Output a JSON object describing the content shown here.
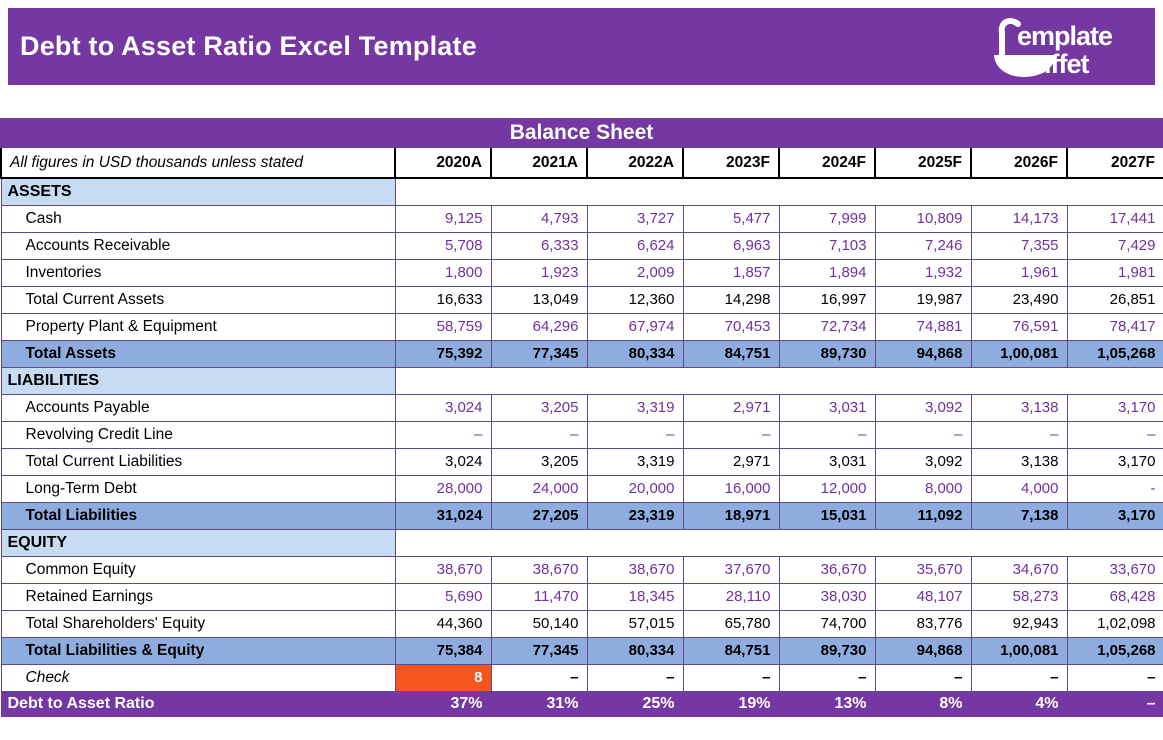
{
  "header": {
    "title": "Debt to Asset Ratio Excel Template",
    "logo": {
      "line1": "emplate",
      "line2": "uffet"
    }
  },
  "table": {
    "title": "Balance Sheet",
    "note": "All figures in USD thousands unless stated",
    "columns": [
      "2020A",
      "2021A",
      "2022A",
      "2023F",
      "2024F",
      "2025F",
      "2026F",
      "2027F"
    ],
    "rows": [
      {
        "label": "ASSETS",
        "type": "section",
        "values": []
      },
      {
        "label": "Cash",
        "type": "input",
        "values": [
          "9,125",
          "4,793",
          "3,727",
          "5,477",
          "7,999",
          "10,809",
          "14,173",
          "17,441"
        ]
      },
      {
        "label": "Accounts Receivable",
        "type": "input",
        "values": [
          "5,708",
          "6,333",
          "6,624",
          "6,963",
          "7,103",
          "7,246",
          "7,355",
          "7,429"
        ]
      },
      {
        "label": "Inventories",
        "type": "input",
        "values": [
          "1,800",
          "1,923",
          "2,009",
          "1,857",
          "1,894",
          "1,932",
          "1,961",
          "1,981"
        ]
      },
      {
        "label": "Total Current Assets",
        "type": "calc",
        "values": [
          "16,633",
          "13,049",
          "12,360",
          "14,298",
          "16,997",
          "19,987",
          "23,490",
          "26,851"
        ]
      },
      {
        "label": "Property Plant & Equipment",
        "type": "input",
        "values": [
          "58,759",
          "64,296",
          "67,974",
          "70,453",
          "72,734",
          "74,881",
          "76,591",
          "78,417"
        ]
      },
      {
        "label": "Total Assets",
        "type": "total",
        "values": [
          "75,392",
          "77,345",
          "80,334",
          "84,751",
          "89,730",
          "94,868",
          "1,00,081",
          "1,05,268"
        ]
      },
      {
        "label": "LIABILITIES",
        "type": "section",
        "values": []
      },
      {
        "label": "Accounts Payable",
        "type": "input",
        "values": [
          "3,024",
          "3,205",
          "3,319",
          "2,971",
          "3,031",
          "3,092",
          "3,138",
          "3,170"
        ]
      },
      {
        "label": "Revolving Credit Line",
        "type": "input",
        "values": [
          "–",
          "–",
          "–",
          "–",
          "–",
          "–",
          "–",
          "–"
        ]
      },
      {
        "label": "Total Current Liabilities",
        "type": "calc",
        "values": [
          "3,024",
          "3,205",
          "3,319",
          "2,971",
          "3,031",
          "3,092",
          "3,138",
          "3,170"
        ]
      },
      {
        "label": "Long-Term Debt",
        "type": "input",
        "values": [
          "28,000",
          "24,000",
          "20,000",
          "16,000",
          "12,000",
          "8,000",
          "4,000",
          "-"
        ]
      },
      {
        "label": "Total Liabilities",
        "type": "total",
        "values": [
          "31,024",
          "27,205",
          "23,319",
          "18,971",
          "15,031",
          "11,092",
          "7,138",
          "3,170"
        ]
      },
      {
        "label": "EQUITY",
        "type": "section",
        "values": []
      },
      {
        "label": "Common Equity",
        "type": "input",
        "values": [
          "38,670",
          "38,670",
          "38,670",
          "37,670",
          "36,670",
          "35,670",
          "34,670",
          "33,670"
        ]
      },
      {
        "label": "Retained Earnings",
        "type": "input",
        "values": [
          "5,690",
          "11,470",
          "18,345",
          "28,110",
          "38,030",
          "48,107",
          "58,273",
          "68,428"
        ]
      },
      {
        "label": "Total Shareholders' Equity",
        "type": "calc",
        "values": [
          "44,360",
          "50,140",
          "57,015",
          "65,780",
          "74,700",
          "83,776",
          "92,943",
          "1,02,098"
        ]
      },
      {
        "label": "Total Liabilities & Equity",
        "type": "total",
        "values": [
          "75,384",
          "77,345",
          "80,334",
          "84,751",
          "89,730",
          "94,868",
          "1,00,081",
          "1,05,268"
        ]
      },
      {
        "label": "Check",
        "type": "check",
        "values": [
          "8",
          "–",
          "–",
          "–",
          "–",
          "–",
          "–",
          "–"
        ]
      },
      {
        "label": "Debt to Asset Ratio",
        "type": "ratio",
        "values": [
          "37%",
          "31%",
          "25%",
          "19%",
          "13%",
          "8%",
          "4%",
          "–"
        ]
      }
    ]
  },
  "colors": {
    "brand_purple": "#7538A3",
    "total_row_blue": "#8EACDE",
    "section_blue": "#C7DCF2",
    "input_text_purple": "#7030A0",
    "check_flag_orange": "#F4561E",
    "grid_line": "#5F4B82"
  }
}
